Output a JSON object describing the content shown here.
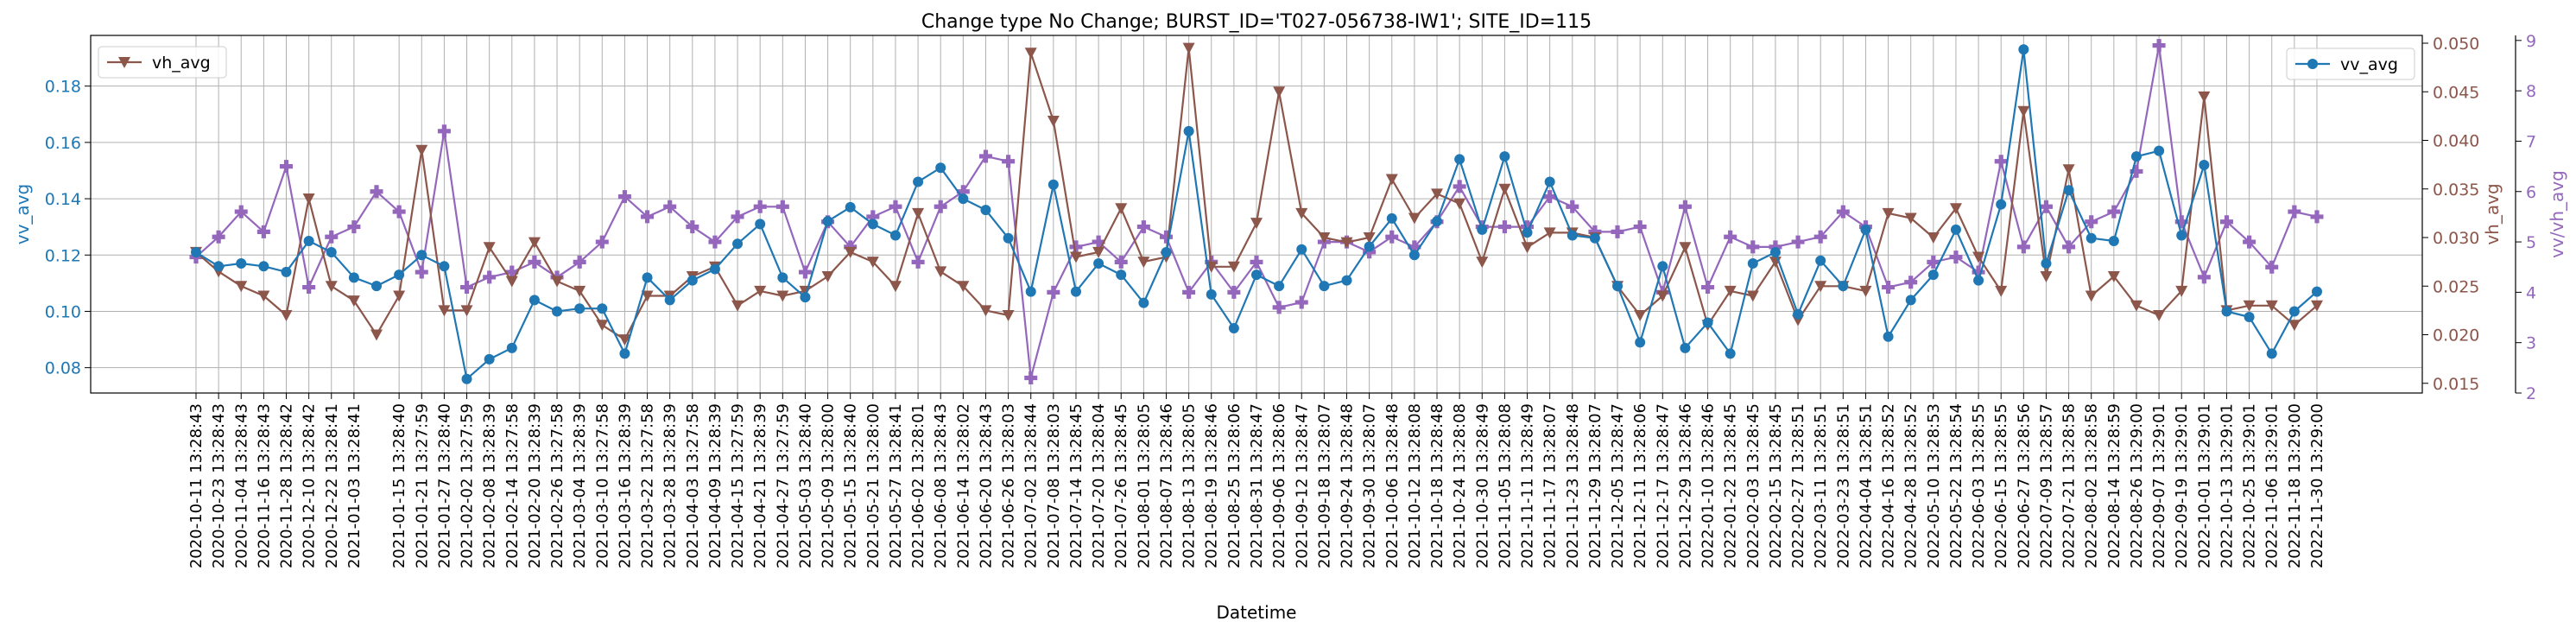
{
  "chart_data": {
    "type": "line",
    "title": "Change type No Change; BURST_ID='T027-056738-IW1'; SITE_ID=115",
    "xlabel": "Datetime",
    "x": [
      "2020-10-11 13:28:43",
      "2020-10-23 13:28:43",
      "2020-11-04 13:28:43",
      "2020-11-16 13:28:43",
      "2020-11-28 13:28:42",
      "2020-12-10 13:28:42",
      "2020-12-22 13:28:41",
      "2021-01-03 13:28:41",
      "2021-01-09 13:28:41",
      "2021-01-15 13:28:40",
      "2021-01-21 13:27:59",
      "2021-01-27 13:28:40",
      "2021-02-02 13:27:59",
      "2021-02-08 13:28:39",
      "2021-02-14 13:27:58",
      "2021-02-20 13:28:39",
      "2021-02-26 13:27:58",
      "2021-03-04 13:28:39",
      "2021-03-10 13:27:58",
      "2021-03-16 13:28:39",
      "2021-03-22 13:27:58",
      "2021-03-28 13:28:39",
      "2021-04-03 13:27:58",
      "2021-04-09 13:28:39",
      "2021-04-15 13:27:59",
      "2021-04-21 13:28:39",
      "2021-04-27 13:27:59",
      "2021-05-03 13:28:40",
      "2021-05-09 13:28:00",
      "2021-05-15 13:28:40",
      "2021-05-21 13:28:00",
      "2021-05-27 13:28:41",
      "2021-06-02 13:28:01",
      "2021-06-08 13:28:43",
      "2021-06-14 13:28:02",
      "2021-06-20 13:28:43",
      "2021-06-26 13:28:03",
      "2021-07-02 13:28:44",
      "2021-07-08 13:28:03",
      "2021-07-14 13:28:45",
      "2021-07-20 13:28:04",
      "2021-07-26 13:28:45",
      "2021-08-01 13:28:05",
      "2021-08-07 13:28:46",
      "2021-08-13 13:28:05",
      "2021-08-19 13:28:46",
      "2021-08-25 13:28:06",
      "2021-08-31 13:28:47",
      "2021-09-06 13:28:06",
      "2021-09-12 13:28:47",
      "2021-09-18 13:28:07",
      "2021-09-24 13:28:48",
      "2021-09-30 13:28:07",
      "2021-10-06 13:28:48",
      "2021-10-12 13:28:08",
      "2021-10-18 13:28:48",
      "2021-10-24 13:28:08",
      "2021-10-30 13:28:49",
      "2021-11-05 13:28:08",
      "2021-11-11 13:28:49",
      "2021-11-17 13:28:07",
      "2021-11-23 13:28:48",
      "2021-11-29 13:28:07",
      "2021-12-05 13:28:47",
      "2021-12-11 13:28:06",
      "2021-12-17 13:28:47",
      "2021-12-29 13:28:46",
      "2022-01-10 13:28:46",
      "2022-01-22 13:28:45",
      "2022-02-03 13:28:45",
      "2022-02-15 13:28:45",
      "2022-02-27 13:28:51",
      "2022-03-11 13:28:51",
      "2022-03-23 13:28:51",
      "2022-04-04 13:28:51",
      "2022-04-16 13:28:52",
      "2022-04-28 13:28:52",
      "2022-05-10 13:28:53",
      "2022-05-22 13:28:54",
      "2022-06-03 13:28:55",
      "2022-06-15 13:28:55",
      "2022-06-27 13:28:56",
      "2022-07-09 13:28:57",
      "2022-07-21 13:28:58",
      "2022-08-02 13:28:58",
      "2022-08-14 13:28:59",
      "2022-08-26 13:29:00",
      "2022-09-07 13:29:01",
      "2022-09-19 13:29:01",
      "2022-10-01 13:29:01",
      "2022-10-13 13:29:01",
      "2022-10-25 13:29:01",
      "2022-11-06 13:29:01",
      "2022-11-18 13:29:00",
      "2022-11-30 13:29:00"
    ],
    "xtick_labels": [
      "2020-10-11 13:28:43",
      "2020-10-23 13:28:43",
      "2020-11-04 13:28:43",
      "2020-11-16 13:28:43",
      "2020-11-28 13:28:42",
      "2020-12-10 13:28:42",
      "2020-12-22 13:28:41",
      "2021-01-03 13:28:41",
      "2021-01-15 13:28:40",
      "2021-01-21 13:27:59",
      "2021-01-27 13:28:40",
      "2021-02-02 13:27:59",
      "2021-02-08 13:28:39",
      "2021-02-14 13:27:58",
      "2021-02-20 13:28:39",
      "2021-02-26 13:27:58",
      "2021-03-04 13:28:39",
      "2021-03-10 13:27:58",
      "2021-03-16 13:28:39",
      "2021-03-22 13:27:58",
      "2021-03-28 13:28:39",
      "2021-04-03 13:27:58",
      "2021-04-09 13:28:39",
      "2021-04-15 13:27:59",
      "2021-04-21 13:28:39",
      "2021-04-27 13:27:59",
      "2021-05-03 13:28:40",
      "2021-05-09 13:28:00",
      "2021-05-15 13:28:40",
      "2021-05-21 13:28:00",
      "2021-05-27 13:28:41",
      "2021-06-02 13:28:01",
      "2021-06-08 13:28:43",
      "2021-06-14 13:28:02",
      "2021-06-20 13:28:43",
      "2021-06-26 13:28:03",
      "2021-07-02 13:28:44",
      "2021-07-08 13:28:03",
      "2021-07-14 13:28:45",
      "2021-07-20 13:28:04",
      "2021-07-26 13:28:45",
      "2021-08-01 13:28:05",
      "2021-08-07 13:28:46",
      "2021-08-13 13:28:05",
      "2021-08-19 13:28:46",
      "2021-08-25 13:28:06",
      "2021-08-31 13:28:47",
      "2021-09-06 13:28:06",
      "2021-09-12 13:28:47",
      "2021-09-18 13:28:07",
      "2021-09-24 13:28:48",
      "2021-09-30 13:28:07",
      "2021-10-06 13:28:48",
      "2021-10-12 13:28:08",
      "2021-10-18 13:28:48",
      "2021-10-24 13:28:08",
      "2021-10-30 13:28:49",
      "2021-11-05 13:28:08",
      "2021-11-11 13:28:49",
      "2021-11-17 13:28:07",
      "2021-11-23 13:28:48",
      "2021-11-29 13:28:07",
      "2021-12-05 13:28:47",
      "2021-12-11 13:28:06",
      "2021-12-17 13:28:47",
      "2021-12-29 13:28:46",
      "2022-01-10 13:28:46",
      "2022-01-22 13:28:45",
      "2022-02-03 13:28:45",
      "2022-02-15 13:28:45",
      "2022-02-27 13:28:51",
      "2022-03-11 13:28:51",
      "2022-03-23 13:28:51",
      "2022-04-04 13:28:51",
      "2022-04-16 13:28:52",
      "2022-04-28 13:28:52",
      "2022-05-10 13:28:53",
      "2022-05-22 13:28:54",
      "2022-06-03 13:28:55",
      "2022-06-15 13:28:55",
      "2022-06-27 13:28:56",
      "2022-07-09 13:28:57",
      "2022-07-21 13:28:58",
      "2022-08-02 13:28:58",
      "2022-08-14 13:28:59",
      "2022-08-26 13:29:00",
      "2022-09-07 13:29:01",
      "2022-09-19 13:29:01",
      "2022-10-01 13:29:01",
      "2022-10-13 13:29:01",
      "2022-10-25 13:29:01",
      "2022-11-06 13:29:01",
      "2022-11-18 13:29:00",
      "2022-11-30 13:29:00"
    ],
    "grid": true,
    "axes": {
      "left": {
        "label": "vv_avg",
        "color": "#1f77b4",
        "ylim": [
          0.071,
          0.198
        ],
        "ticks": [
          0.08,
          0.1,
          0.12,
          0.14,
          0.16,
          0.18
        ],
        "tick_labels": [
          "0.08",
          "0.10",
          "0.12",
          "0.14",
          "0.16",
          "0.18"
        ]
      },
      "right": {
        "label": "vh_avg",
        "color": "#8c564b",
        "ylim": [
          0.014,
          0.0508
        ],
        "ticks": [
          0.015,
          0.02,
          0.025,
          0.03,
          0.035,
          0.04,
          0.045,
          0.05
        ],
        "tick_labels": [
          "0.015",
          "0.020",
          "0.025",
          "0.030",
          "0.035",
          "0.040",
          "0.045",
          "0.050"
        ]
      },
      "right2": {
        "label": "vv/vh_avg",
        "color": "#9467bd",
        "ylim": [
          2.0,
          9.1
        ],
        "ticks": [
          2,
          3,
          4,
          5,
          6,
          7,
          8,
          9
        ],
        "tick_labels": [
          "2",
          "3",
          "4",
          "5",
          "6",
          "7",
          "8",
          "9"
        ]
      }
    },
    "series": [
      {
        "name": "vv_avg",
        "axis": "left",
        "color": "#1f77b4",
        "marker": "circle",
        "legend_position": "upper right",
        "values": [
          0.121,
          0.116,
          0.117,
          0.116,
          0.114,
          0.125,
          0.121,
          0.112,
          0.109,
          0.113,
          0.12,
          0.116,
          0.076,
          0.083,
          0.087,
          0.104,
          0.1,
          0.101,
          0.101,
          0.085,
          0.112,
          0.104,
          0.111,
          0.115,
          0.124,
          0.131,
          0.112,
          0.105,
          0.132,
          0.137,
          0.131,
          0.127,
          0.146,
          0.151,
          0.14,
          0.136,
          0.126,
          0.107,
          0.145,
          0.107,
          0.117,
          0.113,
          0.103,
          0.121,
          0.164,
          0.106,
          0.094,
          0.113,
          0.109,
          0.122,
          0.109,
          0.111,
          0.123,
          0.133,
          0.12,
          0.132,
          0.154,
          0.129,
          0.155,
          0.128,
          0.146,
          0.127,
          0.126,
          0.109,
          0.089,
          0.116,
          0.087,
          0.096,
          0.085,
          0.117,
          0.121,
          0.099,
          0.118,
          0.109,
          0.129,
          0.091,
          0.104,
          0.113,
          0.129,
          0.111,
          0.138,
          0.193,
          0.117,
          0.143,
          0.126,
          0.125,
          0.155,
          0.157,
          0.127,
          0.152,
          0.1,
          0.098,
          0.085,
          0.1,
          0.107
        ]
      },
      {
        "name": "vh_avg",
        "axis": "right",
        "color": "#8c564b",
        "marker": "triangle-down",
        "legend_position": "upper left",
        "values": [
          0.0285,
          0.0265,
          0.025,
          0.024,
          0.022,
          0.034,
          0.025,
          0.0235,
          0.02,
          0.024,
          0.039,
          0.0225,
          0.0225,
          0.029,
          0.0255,
          0.0295,
          0.0255,
          0.0245,
          0.021,
          0.0195,
          0.024,
          0.024,
          0.026,
          0.027,
          0.023,
          0.0245,
          0.024,
          0.0245,
          0.026,
          0.0285,
          0.0275,
          0.025,
          0.0325,
          0.0265,
          0.025,
          0.0225,
          0.022,
          0.049,
          0.042,
          0.028,
          0.0285,
          0.033,
          0.0275,
          0.028,
          0.0495,
          0.027,
          0.027,
          0.0315,
          0.045,
          0.0325,
          0.03,
          0.0295,
          0.03,
          0.036,
          0.032,
          0.0345,
          0.0335,
          0.0275,
          0.035,
          0.029,
          0.0305,
          0.0305,
          0.03,
          0.025,
          0.022,
          0.024,
          0.029,
          0.021,
          0.0245,
          0.024,
          0.0275,
          0.0215,
          0.025,
          0.025,
          0.0245,
          0.0325,
          0.032,
          0.03,
          0.033,
          0.028,
          0.0245,
          0.043,
          0.026,
          0.037,
          0.024,
          0.026,
          0.023,
          0.022,
          0.0245,
          0.0445,
          0.0225,
          0.023,
          0.023,
          0.021,
          0.023
        ]
      },
      {
        "name": "vv/vh_avg",
        "axis": "right2",
        "color": "#9467bd",
        "marker": "plus",
        "values": [
          4.7,
          5.1,
          5.6,
          5.2,
          6.5,
          4.1,
          5.1,
          5.3,
          6.0,
          5.6,
          4.4,
          7.2,
          4.1,
          4.3,
          4.4,
          4.6,
          4.3,
          4.6,
          5.0,
          5.9,
          5.5,
          5.7,
          5.3,
          5.0,
          5.5,
          5.7,
          5.7,
          4.4,
          5.4,
          4.9,
          5.5,
          5.7,
          4.6,
          5.7,
          6.0,
          6.7,
          6.6,
          2.3,
          4.0,
          4.9,
          5.0,
          4.6,
          5.3,
          5.1,
          4.0,
          4.6,
          4.0,
          4.6,
          3.7,
          3.8,
          5.0,
          5.0,
          4.8,
          5.1,
          4.9,
          5.4,
          6.1,
          5.3,
          5.3,
          5.3,
          5.9,
          5.7,
          5.2,
          5.2,
          5.3,
          4.0,
          5.7,
          4.1,
          5.1,
          4.9,
          4.9,
          5.0,
          5.1,
          5.6,
          5.3,
          4.1,
          4.2,
          4.6,
          4.7,
          4.4,
          6.6,
          4.9,
          5.7,
          4.9,
          5.4,
          5.6,
          6.4,
          8.9,
          5.4,
          4.3,
          5.4,
          5.0,
          4.5,
          5.6,
          5.5
        ]
      }
    ]
  }
}
